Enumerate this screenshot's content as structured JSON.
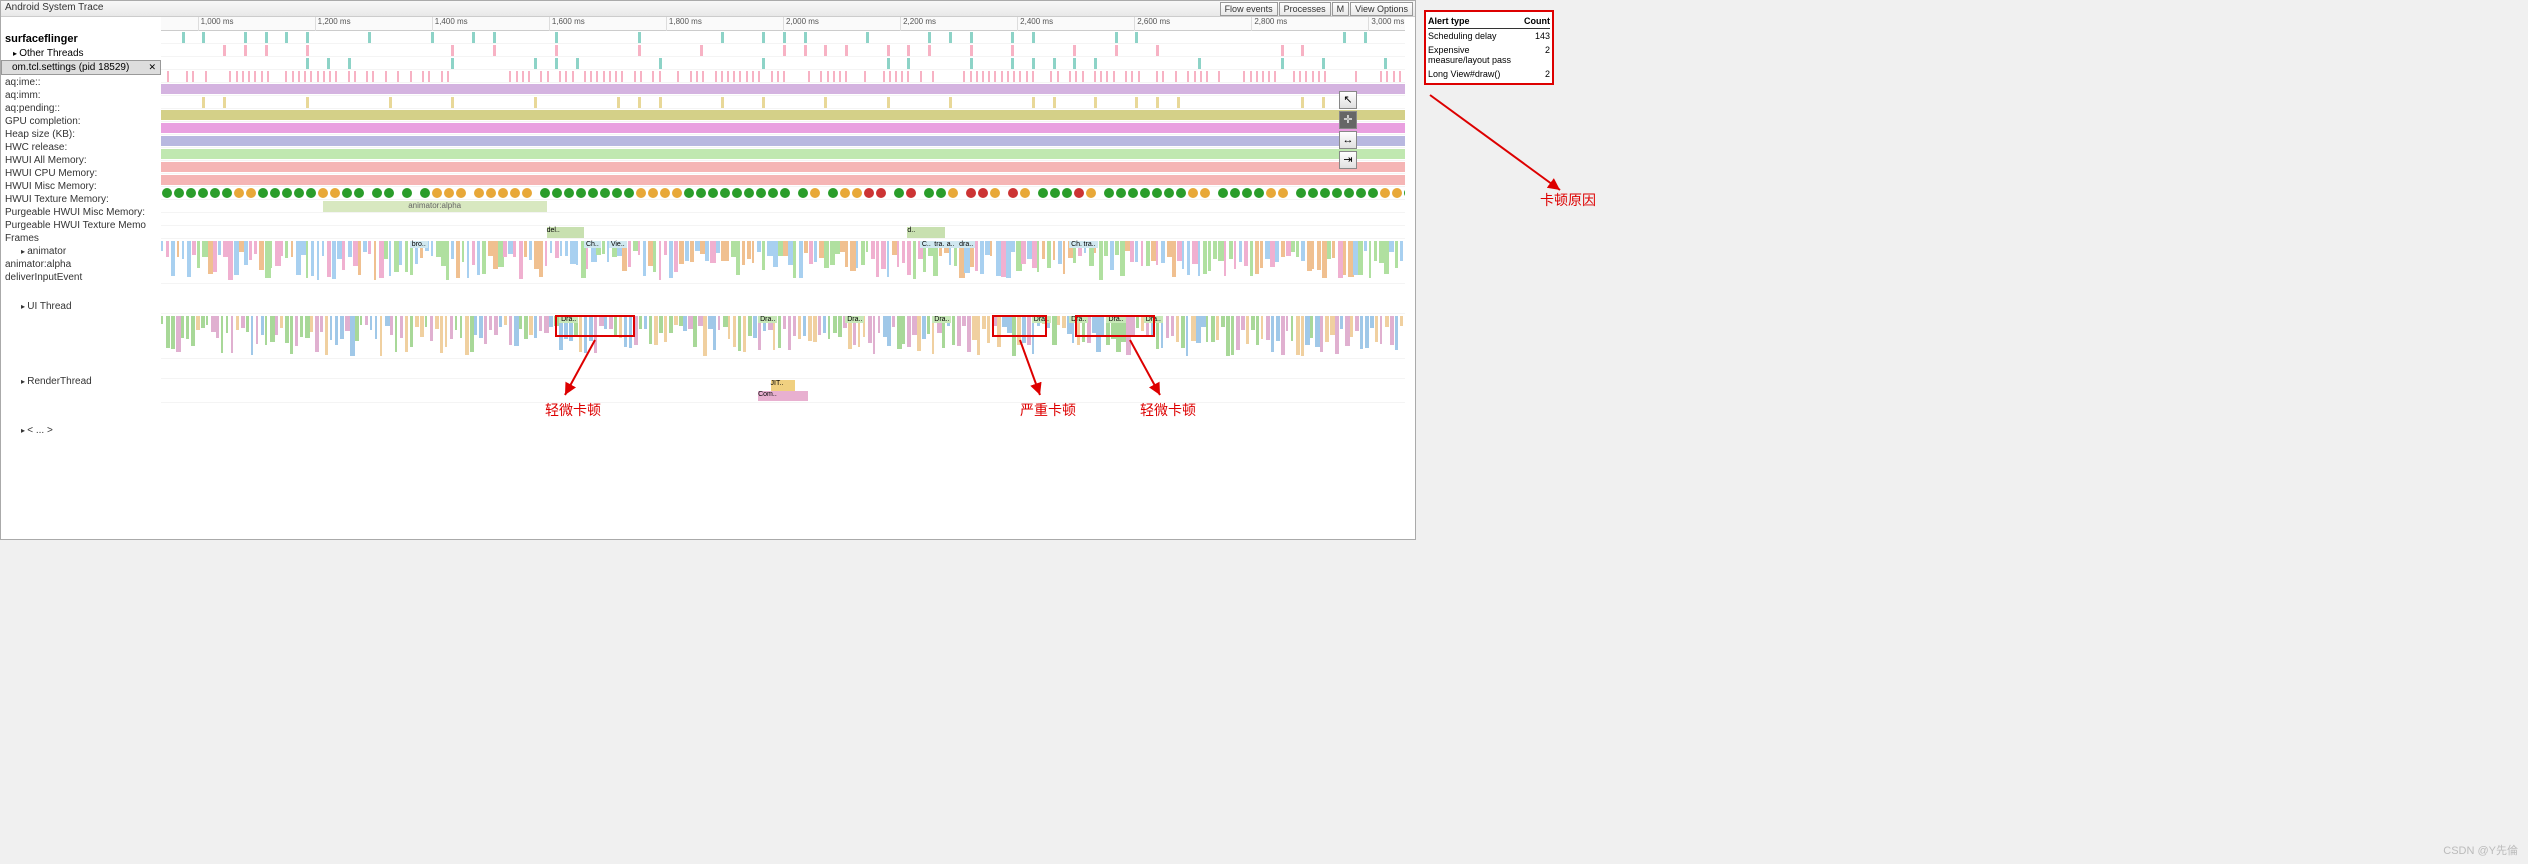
{
  "title": "Android System Trace",
  "toolbar": {
    "flow_events": "Flow events",
    "processes": "Processes",
    "m": "M",
    "view_options": "View Options"
  },
  "timeline": {
    "ticks": [
      {
        "pos": 5,
        "label": "1,000 ms"
      },
      {
        "pos": 21,
        "label": "1,200 ms"
      },
      {
        "pos": 37,
        "label": "1,400 ms"
      },
      {
        "pos": 53,
        "label": "1,600 ms"
      },
      {
        "pos": 69,
        "label": "1,800 ms"
      },
      {
        "pos": 85,
        "label": "2,000 ms"
      },
      {
        "pos": 101,
        "label": "2,200 ms"
      },
      {
        "pos": 117,
        "label": "2,400 ms"
      },
      {
        "pos": 133,
        "label": "2,600 ms"
      },
      {
        "pos": 149,
        "label": "2,800 ms"
      },
      {
        "pos": 165,
        "label": "3,000 ms"
      }
    ]
  },
  "sidebar": {
    "surfaceflinger": "surfaceflinger",
    "other_threads": "Other Threads",
    "selected_process": "om.tcl.settings (pid 18529)",
    "rows": [
      {
        "label": "aq:ime::",
        "type": "sparse",
        "color": "#8dd3c7"
      },
      {
        "label": "aq:imm:",
        "type": "sparse",
        "color": "#f7b2c4"
      },
      {
        "label": "aq:pending::",
        "type": "sparse",
        "color": "#8dd3c7"
      },
      {
        "label": "GPU completion:",
        "type": "dense",
        "color": "#f7b2c4"
      },
      {
        "label": "Heap size (KB):",
        "type": "solid",
        "color": "#d4b3e0"
      },
      {
        "label": "HWC release:",
        "type": "sparse",
        "color": "#e8d898"
      },
      {
        "label": "HWUI All Memory:",
        "type": "solid",
        "color": "#d4d088"
      },
      {
        "label": "HWUI CPU Memory:",
        "type": "solid",
        "color": "#e9a0e0"
      },
      {
        "label": "HWUI Misc Memory:",
        "type": "solid",
        "color": "#b8b8e0"
      },
      {
        "label": "HWUI Texture Memory:",
        "type": "solid",
        "color": "#c0e8b0"
      },
      {
        "label": "Purgeable HWUI Misc Memory:",
        "type": "solid",
        "color": "#f5b5b5"
      },
      {
        "label": "Purgeable HWUI Texture Memo",
        "type": "solid",
        "color": "#f5b5b5"
      },
      {
        "label": "Frames",
        "type": "frames"
      },
      {
        "label": "animator",
        "type": "anim",
        "indent": true
      },
      {
        "label": "animator:alpha",
        "type": "anim2"
      },
      {
        "label": "deliverInputEvent",
        "type": "input"
      },
      {
        "label": "UI Thread",
        "type": "uithread",
        "indent": true
      },
      {
        "label": "",
        "type": "spacer"
      },
      {
        "label": "RenderThread",
        "type": "renderthread",
        "indent": true
      },
      {
        "label": "",
        "type": "spacer2"
      },
      {
        "label": "< ... >",
        "type": "misc",
        "indent": true
      }
    ]
  },
  "frames_pattern": "ggggggyygggggyygg gg g gyyy yyyyy ggggggggyyyyggggggggg gy gyyrr gr ggy rry ry gggry gggggggyy ggggyy gggggggyygggggggyy ggggggggggggggggggggygggggg",
  "alerts": {
    "header_type": "Alert type",
    "header_count": "Count",
    "rows": [
      {
        "name": "Scheduling delay",
        "count": "143"
      },
      {
        "name": "Expensive measure/layout pass",
        "count": "2"
      },
      {
        "name": "Long View#draw()",
        "count": "2"
      }
    ]
  },
  "annotations": {
    "minor_jank1": "轻微卡顿",
    "severe_jank": "严重卡顿",
    "minor_jank2": "轻微卡顿",
    "jank_reason": "卡顿原因"
  },
  "track_labels": {
    "animator_alpha": "animator:alpha",
    "bro": "bro..",
    "ch": "Ch..",
    "vie": "Vie..",
    "del": "del..",
    "d": "d..",
    "c": "C..",
    "tra": "tra..",
    "a": "a..",
    "dra": "dra..",
    "Dra": "Dra..",
    "jit": "JIT..",
    "com": "Com.."
  },
  "colors": {
    "bg": "#ffffff",
    "green": "#2a9d2a",
    "yellow": "#e8a838",
    "red": "#cc3333",
    "anim_bg": "#d8e8c0",
    "ui_blue": "#a8d0f0",
    "ui_green": "#b0e0a0",
    "ui_orange": "#f0c090",
    "ui_pink": "#f0b0d0",
    "rt_green": "#a8d898",
    "rt_blue": "#a0c8e8"
  },
  "watermark": "CSDN @Y先倫"
}
